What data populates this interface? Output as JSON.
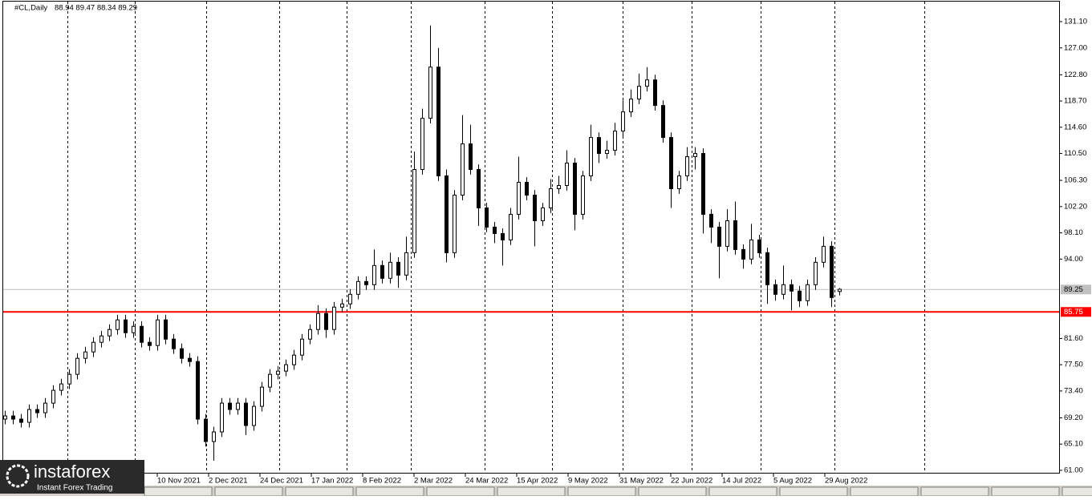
{
  "chart_data": {
    "type": "candlestick",
    "symbol": "#CL,Daily",
    "ohlc_text": "88.94 89.47 88.34 89.29",
    "bull_color": "#ffffff",
    "bear_color": "#000000",
    "ylim": [
      60.62,
      134.23
    ],
    "yticks": [
      {
        "value": 131.1,
        "label": "131.10"
      },
      {
        "value": 127,
        "label": "127.00"
      },
      {
        "value": 122.8,
        "label": "122.80"
      },
      {
        "value": 118.7,
        "label": "118.70"
      },
      {
        "value": 114.6,
        "label": "114.60"
      },
      {
        "value": 110.5,
        "label": "110.50"
      },
      {
        "value": 106.3,
        "label": "106.30"
      },
      {
        "value": 102.2,
        "label": "102.20"
      },
      {
        "value": 98.1,
        "label": "98.10"
      },
      {
        "value": 94,
        "label": "94.00"
      },
      {
        "value": 81.6,
        "label": "81.60"
      },
      {
        "value": 77.5,
        "label": "77.50"
      },
      {
        "value": 73.4,
        "label": "73.40"
      },
      {
        "value": 69.2,
        "label": "69.20"
      },
      {
        "value": 65.1,
        "label": "65.10"
      },
      {
        "value": 61,
        "label": "61.00"
      }
    ],
    "xticks": [
      "10 Nov 2021",
      "2 Dec 2021",
      "24 Dec 2021",
      "17 Jan 2022",
      "8 Feb 2022",
      "2 Mar 2022",
      "24 Mar 2022",
      "15 Apr 2022",
      "9 May 2022",
      "31 May 2022",
      "22 Jun 2022",
      "14 Jul 2022",
      "5 Aug 2022",
      "29 Aug 2022"
    ],
    "price_line": {
      "value": 89.25,
      "color": "#c0c0c0"
    },
    "support_line": {
      "value": 85.75,
      "color": "#ff0000"
    },
    "candles": [
      [
        69,
        70.3,
        68.2,
        69.5
      ],
      [
        69.5,
        70.3,
        68.2,
        69
      ],
      [
        69,
        69.8,
        67.7,
        68.5
      ],
      [
        68.5,
        71.3,
        67.7,
        70.5
      ],
      [
        70.5,
        71.3,
        69.2,
        70
      ],
      [
        70,
        72.3,
        69.2,
        71.5
      ],
      [
        71.5,
        74.3,
        70.7,
        73.5
      ],
      [
        73.5,
        75.3,
        72.7,
        74.5
      ],
      [
        74.5,
        76.8,
        73.7,
        76
      ],
      [
        76,
        79.3,
        75.2,
        78.5
      ],
      [
        78.5,
        80.3,
        77.7,
        79.5
      ],
      [
        79.5,
        81.8,
        78.7,
        81
      ],
      [
        81,
        82.8,
        80.2,
        82
      ],
      [
        82,
        83.8,
        81.2,
        83
      ],
      [
        83,
        85.3,
        82.2,
        84.5
      ],
      [
        84.5,
        85.3,
        81.7,
        82.5
      ],
      [
        82.5,
        84.3,
        81.7,
        83.5
      ],
      [
        83.5,
        84.3,
        80.2,
        81
      ],
      [
        81,
        81.8,
        79.7,
        80.5
      ],
      [
        80.5,
        85.3,
        79.7,
        84.5
      ],
      [
        84.5,
        85.3,
        80.7,
        81.5
      ],
      [
        81.5,
        82.3,
        79.2,
        80
      ],
      [
        80,
        80.8,
        77.7,
        78.5
      ],
      [
        78.5,
        79.3,
        77.2,
        78
      ],
      [
        78,
        78.8,
        68.2,
        69
      ],
      [
        69,
        69.8,
        64.7,
        65.5
      ],
      [
        65.5,
        67.8,
        62.5,
        67
      ],
      [
        67,
        72.3,
        66.2,
        71.5
      ],
      [
        71.5,
        72.3,
        69.7,
        70.5
      ],
      [
        70.5,
        72.3,
        69.7,
        71.5
      ],
      [
        71.5,
        72.3,
        66.5,
        68
      ],
      [
        68,
        71.8,
        67.2,
        71
      ],
      [
        71,
        74.8,
        70.2,
        74
      ],
      [
        74,
        76.8,
        73.2,
        76
      ],
      [
        76,
        77.3,
        75.2,
        76.5
      ],
      [
        76.5,
        78.3,
        75.7,
        77.5
      ],
      [
        77.5,
        79.8,
        76.7,
        79
      ],
      [
        79,
        82.3,
        78.2,
        81.5
      ],
      [
        81.5,
        83.8,
        80.7,
        83
      ],
      [
        83,
        86.8,
        82.2,
        85.5
      ],
      [
        85.5,
        86.3,
        81.7,
        83
      ],
      [
        83,
        87.3,
        82.2,
        86.5
      ],
      [
        86.5,
        87.8,
        85.7,
        87
      ],
      [
        87,
        89.3,
        86.2,
        88.5
      ],
      [
        88.5,
        91.3,
        87.7,
        90.5
      ],
      [
        90.5,
        91.3,
        89.2,
        90
      ],
      [
        90,
        95.5,
        89.2,
        93
      ],
      [
        93,
        93.8,
        90.2,
        91
      ],
      [
        91,
        95,
        90.2,
        93.5
      ],
      [
        93.5,
        94.3,
        89.5,
        91.5
      ],
      [
        91.5,
        97.5,
        90.7,
        95
      ],
      [
        95,
        110.8,
        94.2,
        108
      ],
      [
        108,
        117.5,
        107.2,
        116
      ],
      [
        116,
        130.5,
        115.2,
        124
      ],
      [
        124,
        127,
        106.2,
        107
      ],
      [
        107,
        108,
        93.5,
        95
      ],
      [
        95,
        104.8,
        94.2,
        104
      ],
      [
        104,
        116.5,
        103.2,
        112
      ],
      [
        112,
        115,
        107.2,
        108
      ],
      [
        108,
        108.8,
        99.2,
        102
      ],
      [
        102,
        102.8,
        98.2,
        99
      ],
      [
        99,
        99.8,
        96.5,
        98
      ],
      [
        98,
        98.8,
        93,
        97
      ],
      [
        97,
        102,
        96.2,
        101
      ],
      [
        101,
        110,
        100.2,
        106
      ],
      [
        106,
        106.8,
        103.2,
        104
      ],
      [
        104,
        104.8,
        96,
        100
      ],
      [
        100,
        102.8,
        99.2,
        102
      ],
      [
        102,
        106.5,
        101.2,
        105
      ],
      [
        105,
        107,
        104.2,
        105.5
      ],
      [
        105.5,
        111,
        104.7,
        109
      ],
      [
        109,
        109.8,
        98.5,
        101
      ],
      [
        101,
        107.8,
        100.2,
        107
      ],
      [
        107,
        115,
        106.2,
        113
      ],
      [
        113,
        113.8,
        109,
        110.5
      ],
      [
        110.5,
        112.5,
        109.7,
        111
      ],
      [
        111,
        115.3,
        110.2,
        114
      ],
      [
        114,
        118.8,
        113.2,
        117
      ],
      [
        117,
        120.5,
        116.2,
        119
      ],
      [
        119,
        123,
        118.2,
        121
      ],
      [
        121,
        124,
        120.2,
        122
      ],
      [
        122,
        122.8,
        117.2,
        118
      ],
      [
        118,
        118.8,
        112.2,
        113
      ],
      [
        113,
        113.8,
        102,
        105
      ],
      [
        105,
        107.8,
        104.2,
        107
      ],
      [
        107,
        111.5,
        106.2,
        110
      ],
      [
        110,
        111.5,
        108,
        110.5
      ],
      [
        110.5,
        111.3,
        98,
        101
      ],
      [
        101,
        101.8,
        96.5,
        99
      ],
      [
        99,
        99.8,
        91,
        96
      ],
      [
        96,
        101.8,
        95.2,
        100
      ],
      [
        100,
        103,
        94.7,
        95.5
      ],
      [
        95.5,
        96.3,
        92.5,
        94
      ],
      [
        94,
        99.5,
        93.2,
        97
      ],
      [
        97,
        97.8,
        94.2,
        95
      ],
      [
        95,
        95.8,
        87,
        90
      ],
      [
        90,
        90.8,
        87.5,
        88.5
      ],
      [
        88.5,
        93,
        87.7,
        90
      ],
      [
        90,
        90.8,
        86,
        89
      ],
      [
        89,
        89.8,
        86.5,
        87.5
      ],
      [
        87.5,
        90.8,
        86.7,
        90
      ],
      [
        90,
        94.3,
        89.2,
        93.5
      ],
      [
        93.5,
        97.5,
        92.7,
        96
      ],
      [
        96,
        96.8,
        86.5,
        88
      ],
      [
        88.94,
        89.47,
        88.34,
        89.29
      ]
    ]
  },
  "logo": {
    "name": "instaforex",
    "tagline": "Instant Forex Trading"
  }
}
